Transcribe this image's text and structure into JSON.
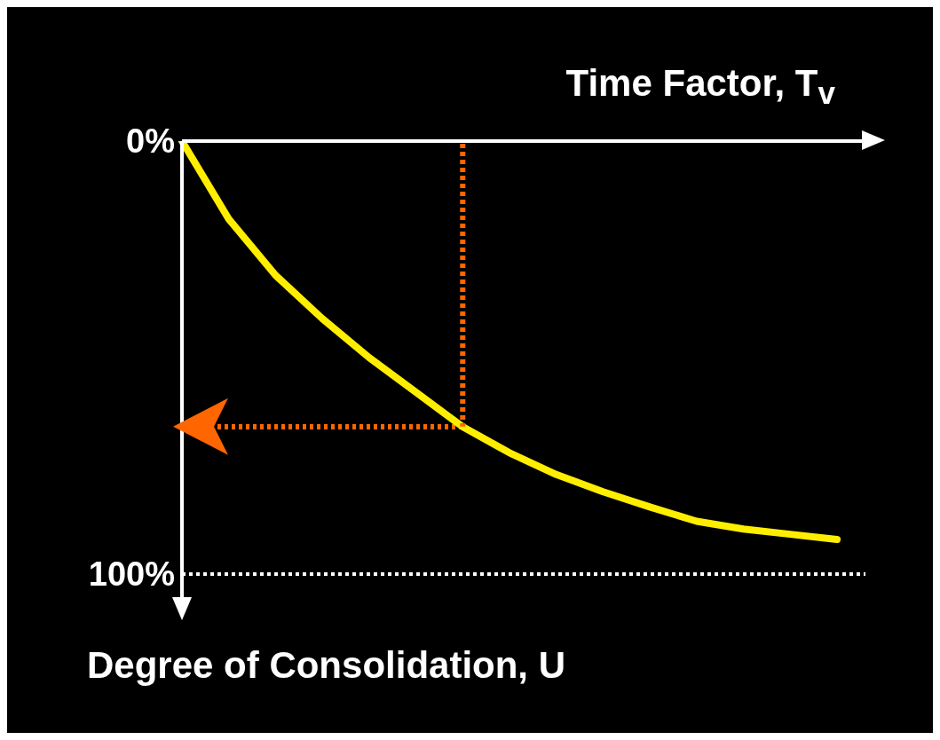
{
  "chart_data": {
    "type": "line",
    "xlabel": "Time Factor, T$_{v}$",
    "ylabel": "Degree of Consolidation, U",
    "categories": [
      null,
      null,
      null,
      null,
      null,
      null,
      null,
      null,
      null,
      null,
      null,
      null,
      null,
      null,
      null
    ],
    "series": [
      {
        "color": "#ffee00",
        "values": [
          0,
          18,
          31,
          41,
          50,
          58,
          66,
          72,
          77,
          81,
          84.5,
          87.8,
          89.6,
          90.8,
          92
        ]
      }
    ],
    "ylim": [
      100,
      0
    ],
    "yticks": [
      {
        "value": 0,
        "label": "0%"
      },
      {
        "value": 100,
        "label": "100%"
      }
    ],
    "tick_labels": "y",
    "grid": false,
    "legend": false,
    "marker": "none",
    "line_style": "solid",
    "ref_lines": [
      {
        "axis": "y",
        "value": 100,
        "color": "#ffffff",
        "line_style": "dotted"
      },
      {
        "axis": "y",
        "value": 66,
        "color": "#ff6600",
        "line_style": "dotted"
      }
    ]
  }
}
